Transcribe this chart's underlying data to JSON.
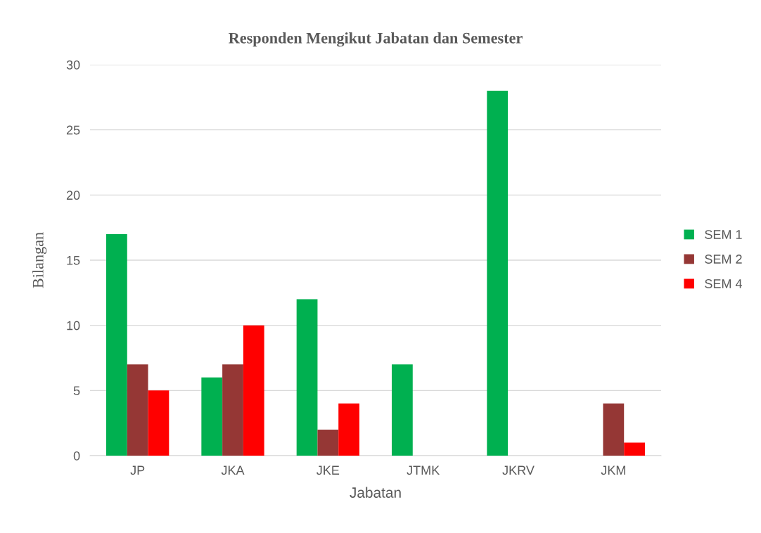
{
  "chart_data": {
    "type": "bar",
    "title": "Responden Mengikut Jabatan dan Semester",
    "xlabel": "Jabatan",
    "ylabel": "Bilangan",
    "categories": [
      "JP",
      "JKA",
      "JKE",
      "JTMK",
      "JKRV",
      "JKM"
    ],
    "series": [
      {
        "name": "SEM 1",
        "color": "#00b050",
        "values": [
          17,
          6,
          12,
          7,
          28,
          0
        ]
      },
      {
        "name": "SEM 2",
        "color": "#953735",
        "values": [
          7,
          7,
          2,
          0,
          0,
          4
        ]
      },
      {
        "name": "SEM 4",
        "color": "#ff0000",
        "values": [
          5,
          10,
          4,
          0,
          0,
          1
        ]
      }
    ],
    "ylim": [
      0,
      30
    ],
    "yticks": [
      0,
      5,
      10,
      15,
      20,
      25,
      30
    ],
    "grid": "y",
    "legend": "right"
  }
}
